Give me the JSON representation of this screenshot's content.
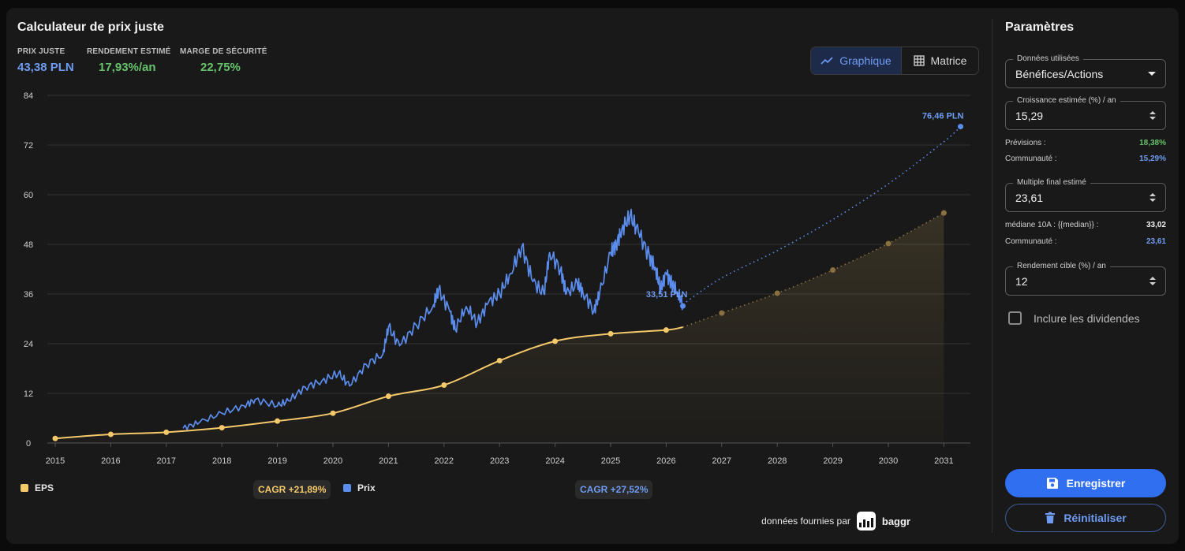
{
  "header": {
    "title": "Calculateur de prix juste",
    "metrics": [
      {
        "label": "PRIX JUSTE",
        "value": "43,38 PLN",
        "color": "#6f9cf3"
      },
      {
        "label": "RENDEMENT ESTIMÉ",
        "value": "17,93%/an",
        "color": "#66c36b"
      },
      {
        "label": "MARGE DE SÉCURITÉ",
        "value": "22,75%",
        "color": "#66c36b"
      }
    ]
  },
  "view_toggle": {
    "chart_label": "Graphique",
    "matrix_label": "Matrice",
    "active": "Graphique"
  },
  "legend": {
    "eps_label": "EPS",
    "eps_cagr": "CAGR +21,89%",
    "price_label": "Prix",
    "price_cagr": "CAGR +27,52%"
  },
  "credits": {
    "text": "données fournies par",
    "brand": "baggr"
  },
  "params": {
    "title": "Paramètres",
    "data_used": {
      "label": "Données utilisées",
      "value": "Bénéfices/Actions"
    },
    "growth": {
      "label": "Croissance estimée (%) / an",
      "value": "15,29"
    },
    "forecasts": {
      "label": "Prévisions :",
      "value": "18,38%"
    },
    "community_growth": {
      "label": "Communauté :",
      "value": "15,29%"
    },
    "multiple": {
      "label": "Multiple final estimé",
      "value": "23,61"
    },
    "median": {
      "label": "médiane 10A : {{median}} :",
      "value": "33,02"
    },
    "community_multiple": {
      "label": "Communauté :",
      "value": "23,61"
    },
    "target": {
      "label": "Rendement cible (%) / an",
      "value": "12"
    },
    "dividends": {
      "label": "Inclure les dividendes",
      "checked": false
    },
    "save_label": "Enregistrer",
    "reset_label": "Réinitialiser"
  },
  "colors": {
    "eps": "#f5c86a",
    "price": "#5b8dee",
    "green": "#66c36b",
    "accent": "#2f6ff0"
  },
  "chart_data": {
    "type": "line",
    "x_ticks": [
      "2015",
      "2016",
      "2017",
      "2018",
      "2019",
      "2020",
      "2021",
      "2022",
      "2023",
      "2024",
      "2025",
      "2026",
      "2027",
      "2028",
      "2029",
      "2030",
      "2031"
    ],
    "y_ticks": [
      "0",
      "12",
      "24",
      "36",
      "48",
      "60",
      "72",
      "84"
    ],
    "ylim": [
      0,
      84
    ],
    "xlim": [
      2015,
      2031.5
    ],
    "grid": true,
    "series": [
      {
        "name": "EPS",
        "color": "#f5c86a",
        "points": [
          [
            2015,
            1.1
          ],
          [
            2016,
            2.1
          ],
          [
            2017,
            2.6
          ],
          [
            2018,
            3.7
          ],
          [
            2019,
            5.3
          ],
          [
            2020,
            7.2
          ],
          [
            2021,
            11.3
          ],
          [
            2022,
            14.0
          ],
          [
            2023,
            19.9
          ],
          [
            2024,
            24.6
          ],
          [
            2025,
            26.4
          ],
          [
            2026,
            27.3
          ]
        ],
        "end": [
          2026.3,
          28.0
        ],
        "projection": [
          [
            2026.3,
            28.0
          ],
          [
            2027,
            31.4
          ],
          [
            2028,
            36.2
          ],
          [
            2029,
            41.8
          ],
          [
            2030,
            48.2
          ],
          [
            2031,
            55.6
          ]
        ]
      },
      {
        "name": "Prix",
        "color": "#5b8dee",
        "points": [
          [
            2017.3,
            3.6
          ],
          [
            2017.6,
            5.0
          ],
          [
            2018.0,
            7.2
          ],
          [
            2018.4,
            9.0
          ],
          [
            2018.6,
            10.5
          ],
          [
            2019.0,
            9.0
          ],
          [
            2019.2,
            10.2
          ],
          [
            2019.5,
            13.5
          ],
          [
            2019.8,
            15.0
          ],
          [
            2020.1,
            16.8
          ],
          [
            2020.3,
            13.8
          ],
          [
            2020.6,
            19.0
          ],
          [
            2020.9,
            21.5
          ],
          [
            2021.0,
            28.0
          ],
          [
            2021.2,
            23.5
          ],
          [
            2021.5,
            28.5
          ],
          [
            2021.8,
            33.0
          ],
          [
            2021.9,
            37.0
          ],
          [
            2022.1,
            32.0
          ],
          [
            2022.2,
            27.5
          ],
          [
            2022.4,
            33.0
          ],
          [
            2022.6,
            29.0
          ],
          [
            2022.8,
            34.0
          ],
          [
            2023.0,
            36.0
          ],
          [
            2023.2,
            41.0
          ],
          [
            2023.4,
            47.5
          ],
          [
            2023.6,
            39.0
          ],
          [
            2023.8,
            36.0
          ],
          [
            2023.9,
            46.0
          ],
          [
            2024.1,
            42.0
          ],
          [
            2024.2,
            36.0
          ],
          [
            2024.4,
            38.5
          ],
          [
            2024.5,
            36.5
          ],
          [
            2024.7,
            32.0
          ],
          [
            2024.8,
            36.0
          ],
          [
            2025.0,
            46.0
          ],
          [
            2025.1,
            48.0
          ],
          [
            2025.2,
            51.5
          ],
          [
            2025.35,
            54.8
          ],
          [
            2025.5,
            51.0
          ],
          [
            2025.7,
            45.0
          ],
          [
            2025.8,
            42.5
          ],
          [
            2025.9,
            37.0
          ],
          [
            2026.0,
            41.0
          ],
          [
            2026.1,
            38.5
          ],
          [
            2026.2,
            36.5
          ],
          [
            2026.3,
            33.5
          ]
        ],
        "end_label": "33,51 PLN",
        "projection": [
          [
            2026.3,
            33.5
          ],
          [
            2027,
            39.9
          ],
          [
            2028,
            46.5
          ],
          [
            2029,
            54.0
          ],
          [
            2030,
            62.6
          ],
          [
            2031,
            72.8
          ],
          [
            2031.3,
            76.46
          ]
        ],
        "target_label": "76,46 PLN"
      }
    ]
  }
}
